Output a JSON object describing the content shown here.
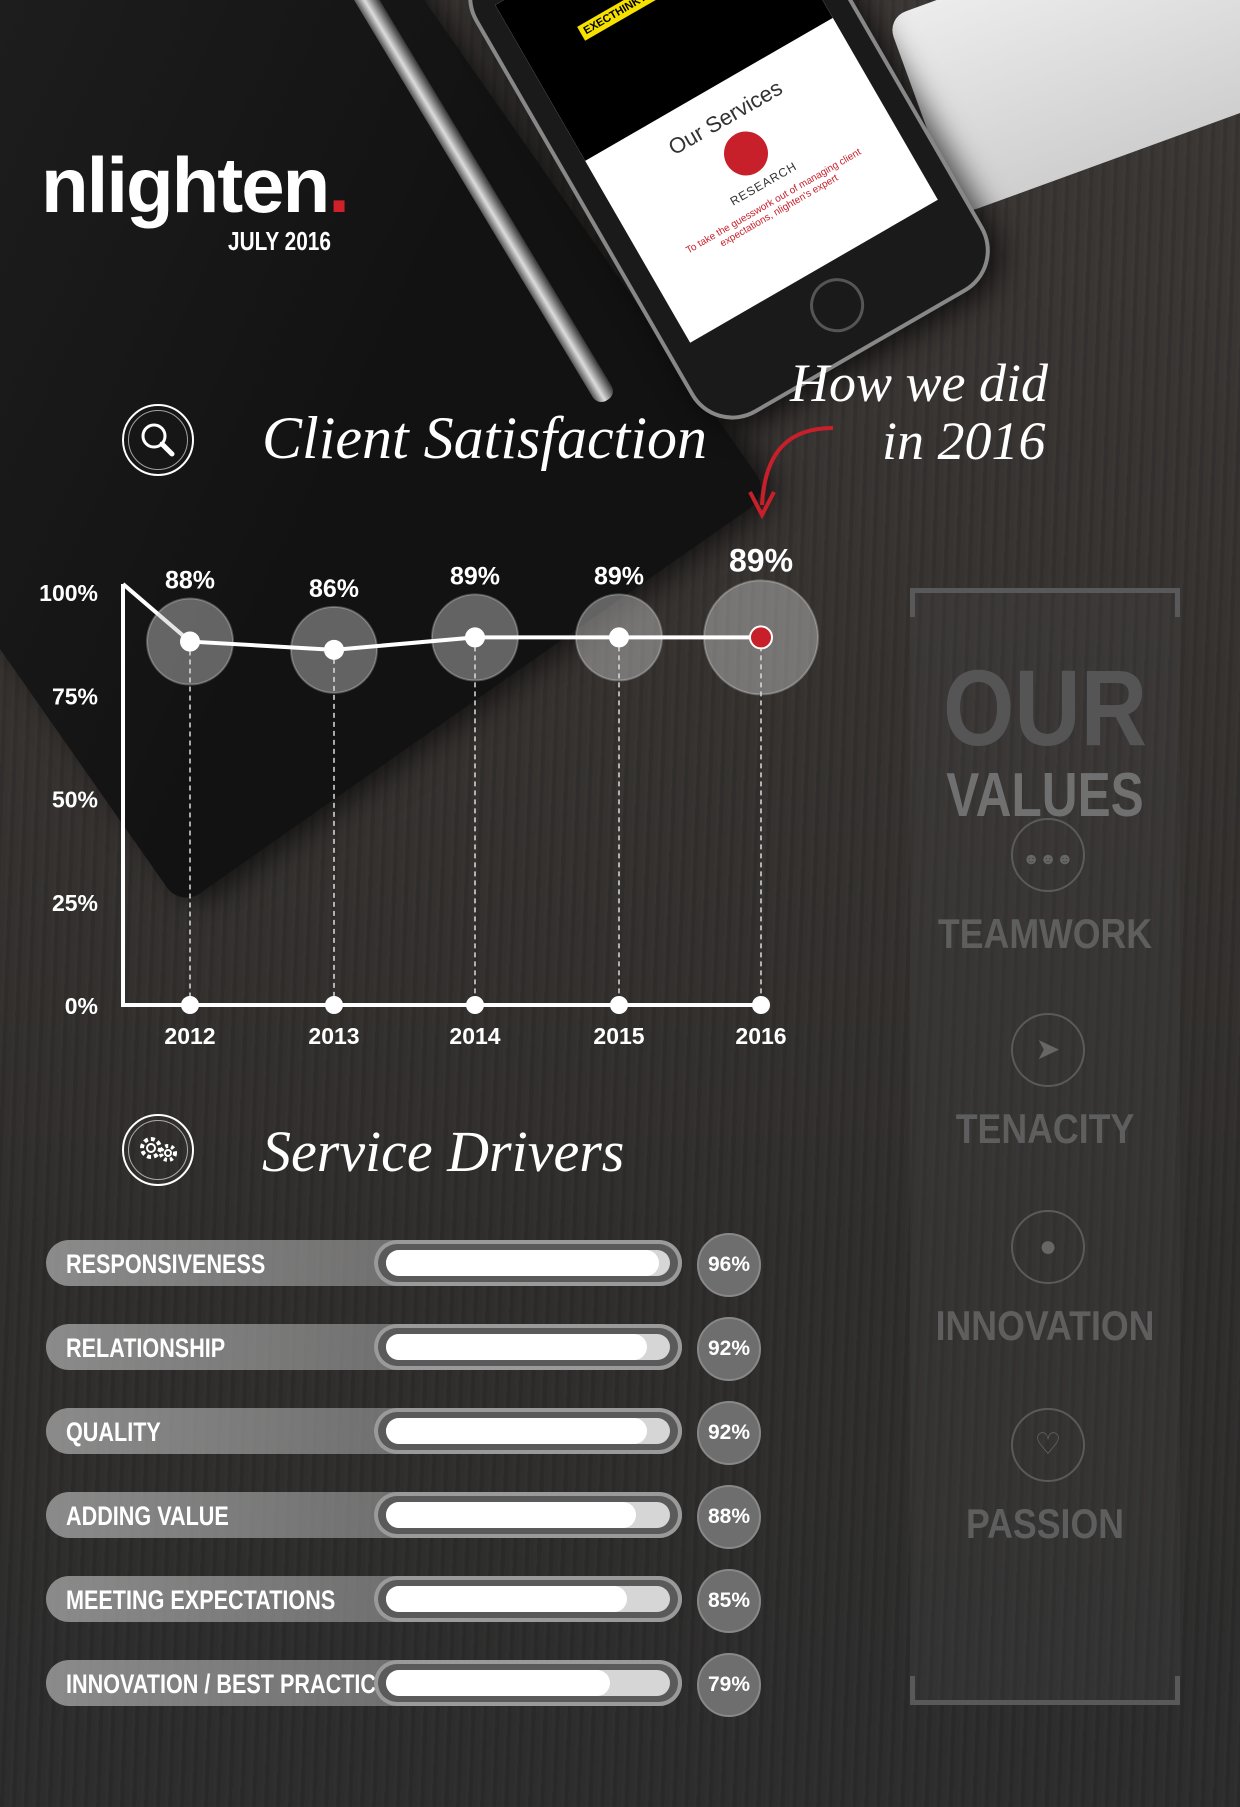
{
  "brand": {
    "name": "nlighten",
    "date": "JULY 2016",
    "accent": "#d0202a"
  },
  "phone_screen": {
    "tag": "EXECTHINKTANK",
    "title": "Our Services",
    "item": "RESEARCH",
    "text": "To take the guesswork out of managing client expectations, nlighten's expert"
  },
  "satisfaction": {
    "title": "Client Satisfaction",
    "icon": "search-icon",
    "callout_line1": "How we did",
    "callout_line2": "in 2016"
  },
  "chart_data": {
    "type": "line",
    "categories": [
      "2012",
      "2013",
      "2014",
      "2015",
      "2016"
    ],
    "values": [
      88,
      86,
      89,
      89,
      89
    ],
    "data_labels": [
      "88%",
      "86%",
      "89%",
      "89%",
      "89%"
    ],
    "ylim": [
      0,
      100
    ],
    "yticks": [
      "0%",
      "25%",
      "50%",
      "75%",
      "100%"
    ],
    "highlight": "2016",
    "highlight_color": "#c8202a",
    "grid": false
  },
  "drivers": {
    "title": "Service Drivers",
    "icon": "gears-icon",
    "items": [
      {
        "label": "RESPONSIVENESS",
        "value": 96,
        "pct": "96%"
      },
      {
        "label": "RELATIONSHIP",
        "value": 92,
        "pct": "92%"
      },
      {
        "label": "QUALITY",
        "value": 92,
        "pct": "92%"
      },
      {
        "label": "ADDING VALUE",
        "value": 88,
        "pct": "88%"
      },
      {
        "label": "MEETING EXPECTATIONS",
        "value": 85,
        "pct": "85%"
      },
      {
        "label": "INNOVATION / BEST PRACTICE",
        "value": 79,
        "pct": "79%"
      }
    ]
  },
  "values": {
    "title_line1": "OUR",
    "title_line2": "VALUES",
    "items": [
      {
        "label": "TEAMWORK",
        "icon": "people-icon"
      },
      {
        "label": "TENACITY",
        "icon": "runner-icon"
      },
      {
        "label": "INNOVATION",
        "icon": "lightbulb-icon"
      },
      {
        "label": "PASSION",
        "icon": "heart-icon"
      }
    ]
  }
}
